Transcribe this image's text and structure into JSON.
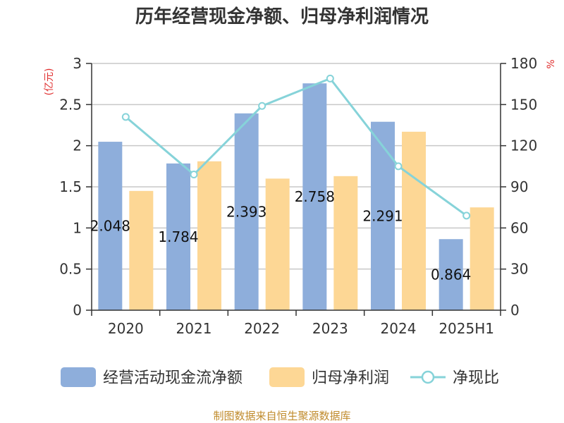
{
  "title": "历年经营现金净额、归母净利润情况",
  "source": "制图数据来自恒生聚源数据库",
  "colors": {
    "cash_flow": "#8eaedb",
    "net_profit": "#fdd795",
    "ratio": "#86d3d9",
    "grid": "#c8c8c8",
    "axis": "#333333",
    "unit": "#e03030",
    "source": "#c08b2c"
  },
  "chart_data": {
    "type": "bar",
    "title": "历年经营现金净额、归母净利润情况",
    "categories": [
      "2020",
      "2021",
      "2022",
      "2023",
      "2024",
      "2025H1"
    ],
    "y_left": {
      "unit": "(亿元)",
      "ylim": [
        0,
        3
      ],
      "ticks": [
        "0",
        "0.5",
        "1",
        "1.5",
        "2",
        "2.5",
        "3"
      ]
    },
    "y_right": {
      "unit": "%",
      "ylim": [
        0,
        180
      ],
      "ticks": [
        "0",
        "30",
        "60",
        "90",
        "120",
        "150",
        "180"
      ]
    },
    "grid": true,
    "legend_position": "bottom",
    "series": [
      {
        "name": "经营活动现金流净额",
        "kind": "bar",
        "axis": "left",
        "values": [
          2.048,
          1.784,
          2.393,
          2.758,
          2.291,
          0.864
        ],
        "labels": [
          "2.048",
          "1.784",
          "2.393",
          "2.758",
          "2.291",
          "0.864"
        ]
      },
      {
        "name": "归母净利润",
        "kind": "bar",
        "axis": "left",
        "values": [
          1.45,
          1.81,
          1.6,
          1.63,
          2.17,
          1.25
        ]
      },
      {
        "name": "净现比",
        "kind": "line",
        "axis": "right",
        "values": [
          141,
          99,
          149,
          169,
          105,
          69
        ]
      }
    ]
  }
}
